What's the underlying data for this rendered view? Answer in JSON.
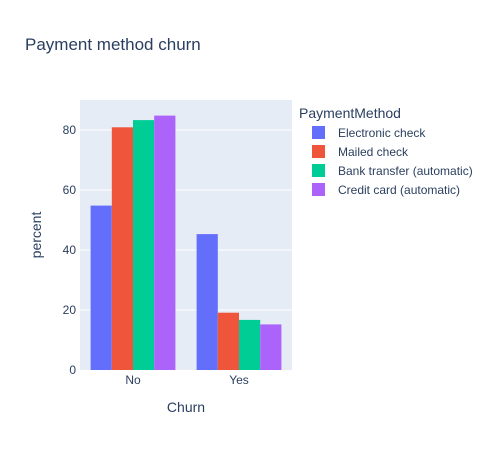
{
  "chart_data": {
    "type": "bar",
    "barmode": "group",
    "title": "Payment method churn",
    "xlabel": "Churn",
    "ylabel": "percent",
    "categories": [
      "No",
      "Yes"
    ],
    "ylim": [
      0,
      90
    ],
    "yticks": [
      0,
      20,
      40,
      60,
      80
    ],
    "grid": true,
    "legend_title": "PaymentMethod",
    "legend_position": "right",
    "series": [
      {
        "name": "Electronic check",
        "color": "#636efa",
        "values": [
          54.8,
          45.3
        ]
      },
      {
        "name": "Mailed check",
        "color": "#ef553b",
        "values": [
          80.9,
          19.1
        ]
      },
      {
        "name": "Bank transfer (automatic)",
        "color": "#00cc96",
        "values": [
          83.3,
          16.7
        ]
      },
      {
        "name": "Credit card (automatic)",
        "color": "#ab63fa",
        "values": [
          84.8,
          15.2
        ]
      }
    ]
  }
}
